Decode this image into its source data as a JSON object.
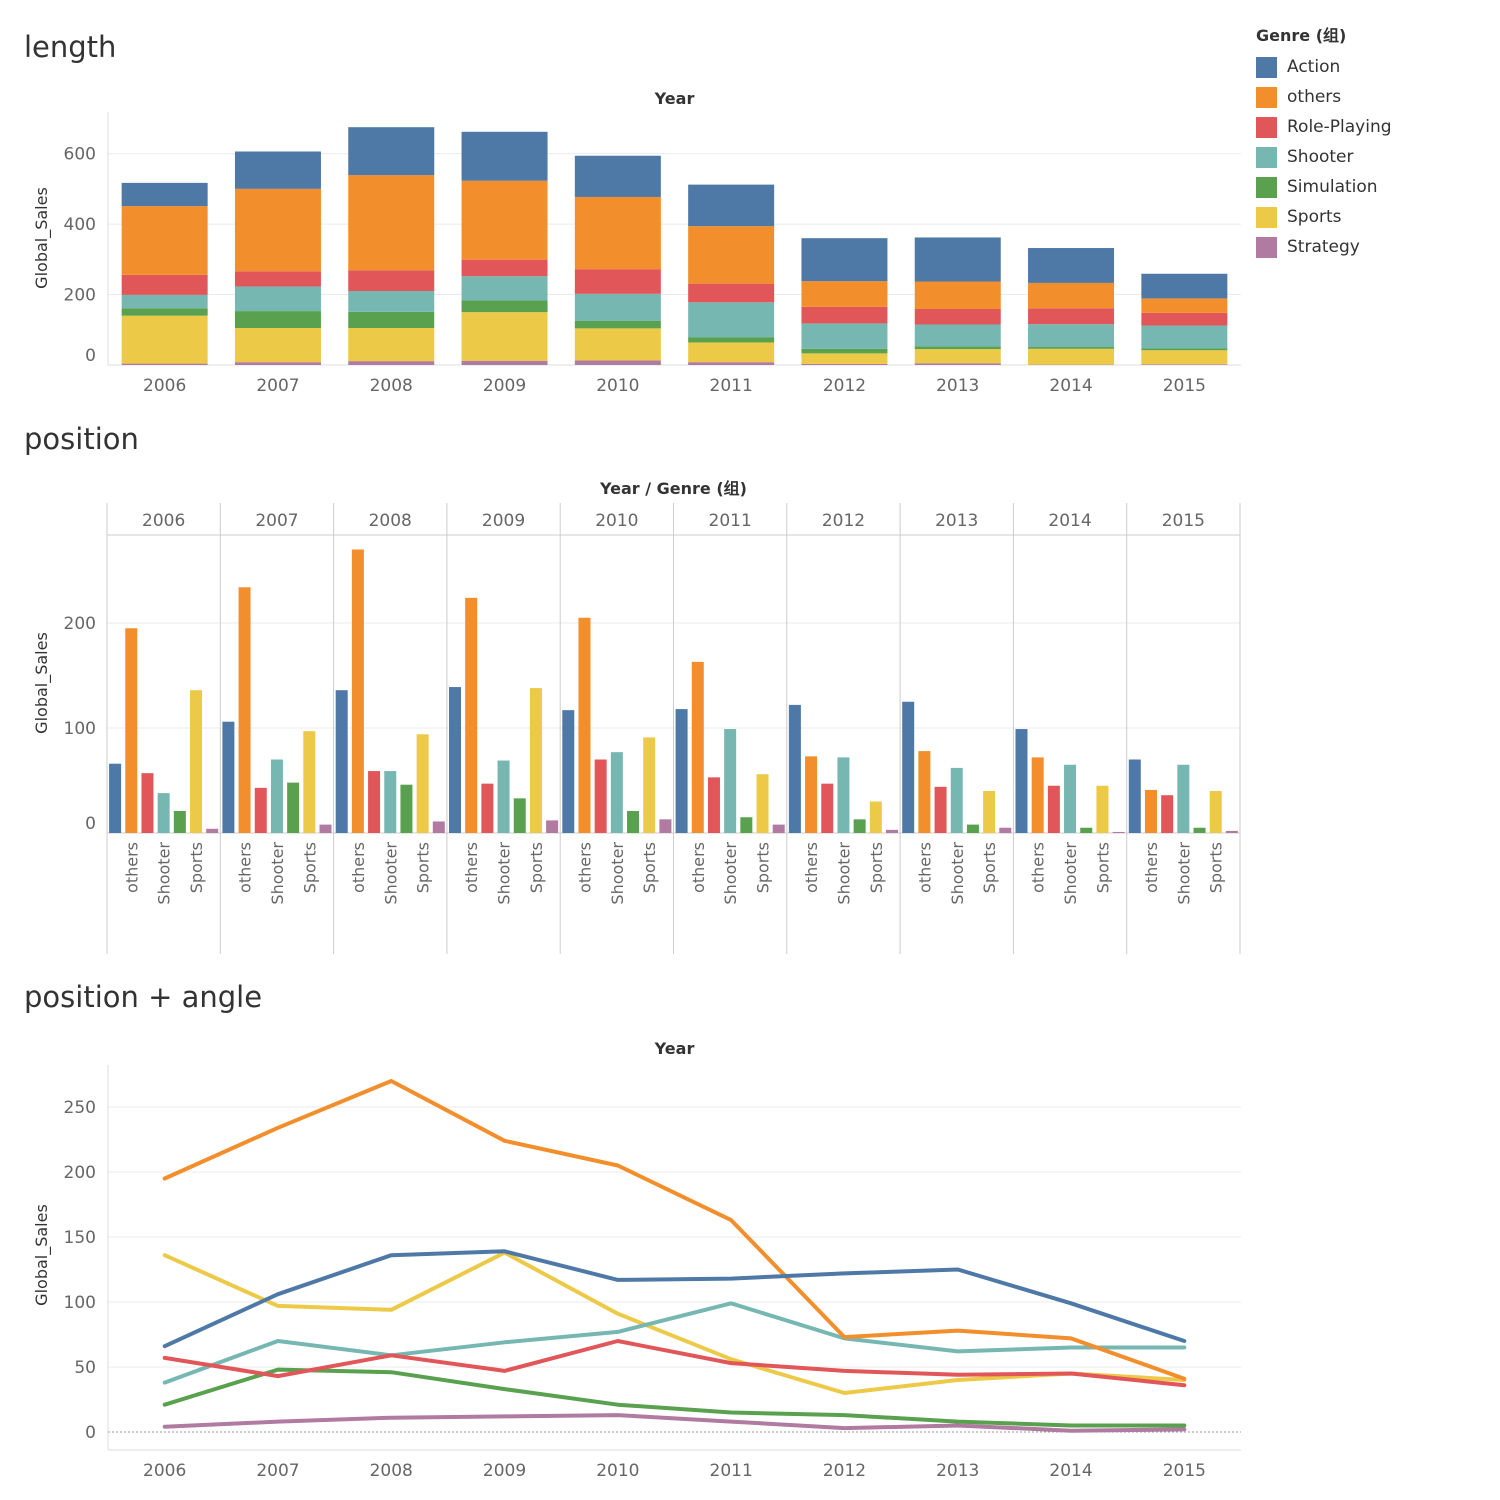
{
  "sections": {
    "length": "length",
    "position": "position",
    "position_angle": "position + angle"
  },
  "legend": {
    "title": "Genre (组)",
    "items": [
      {
        "label": "Action",
        "color": "#4e79a7"
      },
      {
        "label": "others",
        "color": "#f28e2b"
      },
      {
        "label": "Role-Playing",
        "color": "#e15759"
      },
      {
        "label": "Shooter",
        "color": "#76b7b2"
      },
      {
        "label": "Simulation",
        "color": "#59a14f"
      },
      {
        "label": "Sports",
        "color": "#edc948"
      },
      {
        "label": "Strategy",
        "color": "#b07aa1"
      }
    ]
  },
  "chart_data": [
    {
      "type": "bar",
      "stacked": true,
      "title": "length",
      "header": "Year",
      "xlabel": "Year",
      "ylabel": "Global_Sales",
      "ylim": [
        0,
        700
      ],
      "yticks": [
        0,
        200,
        400,
        600
      ],
      "categories": [
        "2006",
        "2007",
        "2008",
        "2009",
        "2010",
        "2011",
        "2012",
        "2013",
        "2014",
        "2015"
      ],
      "series": [
        {
          "name": "Strategy",
          "values": [
            4,
            8,
            11,
            12,
            13,
            8,
            3,
            5,
            1,
            2
          ]
        },
        {
          "name": "Sports",
          "values": [
            136,
            97,
            94,
            138,
            91,
            56,
            30,
            40,
            45,
            40
          ]
        },
        {
          "name": "Simulation",
          "values": [
            21,
            48,
            46,
            33,
            21,
            15,
            13,
            8,
            5,
            5
          ]
        },
        {
          "name": "Shooter",
          "values": [
            38,
            70,
            59,
            69,
            77,
            99,
            72,
            62,
            65,
            65
          ]
        },
        {
          "name": "Role-Playing",
          "values": [
            57,
            43,
            59,
            47,
            70,
            53,
            47,
            44,
            45,
            36
          ]
        },
        {
          "name": "others",
          "values": [
            195,
            234,
            270,
            224,
            205,
            163,
            73,
            78,
            72,
            41
          ]
        },
        {
          "name": "Action",
          "values": [
            66,
            106,
            136,
            139,
            117,
            118,
            122,
            125,
            99,
            70
          ]
        }
      ]
    },
    {
      "type": "bar",
      "grouped": true,
      "title": "position",
      "header": "Year / Genre (组)",
      "ylabel": "Global_Sales",
      "ylim": [
        0,
        270
      ],
      "yticks": [
        0,
        100,
        200
      ],
      "categories": [
        "2006",
        "2007",
        "2008",
        "2009",
        "2010",
        "2011",
        "2012",
        "2013",
        "2014",
        "2015"
      ],
      "axis_labels": [
        "others",
        "Shooter",
        "Sports"
      ],
      "series_ref": "same as chart 1"
    },
    {
      "type": "line",
      "title": "position + angle",
      "header": "Year",
      "ylabel": "Global_Sales",
      "ylim": [
        -12,
        278
      ],
      "yticks": [
        0,
        50,
        100,
        150,
        200,
        250
      ],
      "series_ref": "same as chart 1"
    }
  ]
}
